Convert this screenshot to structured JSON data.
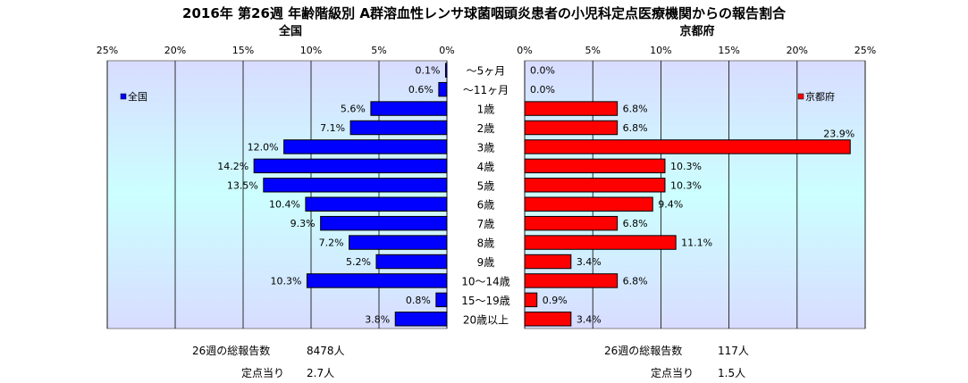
{
  "title": "2016年 第26週 年齢階級別 A群溶血性レンサ球菌咽頭炎患者の小児科定点医療機関からの報告割合",
  "chart_data": {
    "type": "bar",
    "orientation": "horizontal",
    "layout": "population-pyramid",
    "categories": [
      "～5ヶ月",
      "～11ヶ月",
      "1歳",
      "2歳",
      "3歳",
      "4歳",
      "5歳",
      "6歳",
      "7歳",
      "8歳",
      "9歳",
      "10～14歳",
      "15～19歳",
      "20歳以上"
    ],
    "x_ticks": [
      "0%",
      "5%",
      "10%",
      "15%",
      "20%",
      "25%"
    ],
    "xlim": [
      0,
      25
    ],
    "unit": "%",
    "series": [
      {
        "name": "全国",
        "panel_title": "全国",
        "side": "left",
        "color": "#0000ff",
        "values": [
          0.1,
          0.6,
          5.6,
          7.1,
          12.0,
          14.2,
          13.5,
          10.4,
          9.3,
          7.2,
          5.2,
          10.3,
          0.8,
          3.8
        ],
        "labels": [
          "0.1%",
          "0.6%",
          "5.6%",
          "7.1%",
          "12.0%",
          "14.2%",
          "13.5%",
          "10.4%",
          "9.3%",
          "7.2%",
          "5.2%",
          "10.3%",
          "0.8%",
          "3.8%"
        ]
      },
      {
        "name": "京都府",
        "panel_title": "京都府",
        "side": "right",
        "color": "#ff0000",
        "values": [
          0.0,
          0.0,
          6.8,
          6.8,
          23.9,
          10.3,
          10.3,
          9.4,
          6.8,
          11.1,
          3.4,
          6.8,
          0.9,
          3.4
        ],
        "labels": [
          "0.0%",
          "0.0%",
          "6.8%",
          "6.8%",
          "23.9%",
          "10.3%",
          "10.3%",
          "9.4%",
          "6.8%",
          "11.1%",
          "3.4%",
          "6.8%",
          "0.9%",
          "3.4%"
        ]
      }
    ],
    "grid": true,
    "legend": [
      "top-left",
      "top-right"
    ]
  },
  "footer": {
    "left": {
      "total_label": "26週の総報告数",
      "total_value": "8478人",
      "per_label": "定点当り",
      "per_value": "2.7人"
    },
    "right": {
      "total_label": "26週の総報告数",
      "total_value": "117人",
      "per_label": "定点当り",
      "per_value": "1.5人"
    }
  }
}
